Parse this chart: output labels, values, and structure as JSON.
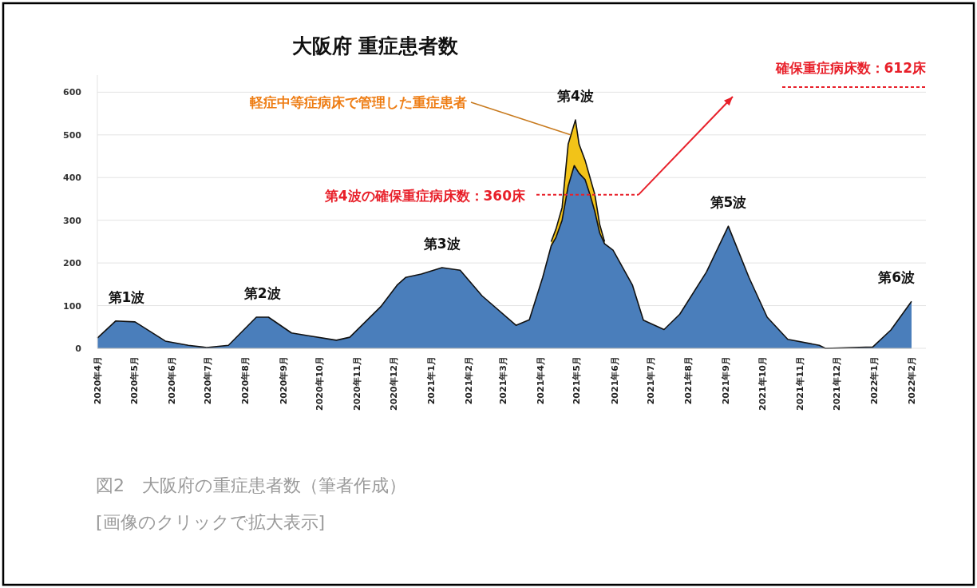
{
  "chart_data": {
    "type": "area",
    "title": "大阪府 重症患者数",
    "series": [
      {
        "color": "#f2c318",
        "x": [
          "2021-04-10",
          "2021-04-14",
          "2021-04-19",
          "2021-04-24",
          "2021-04-30",
          "2021-05-03",
          "2021-05-08",
          "2021-05-12",
          "2021-05-16",
          "2021-05-20",
          "2021-05-24"
        ],
        "values": [
          250,
          280,
          330,
          478,
          535,
          478,
          440,
          400,
          360,
          290,
          250
        ]
      },
      {
        "color": "#4a7ebb",
        "x": [
          "2020-04-01",
          "2020-04-16",
          "2020-05-02",
          "2020-05-27",
          "2020-06-15",
          "2020-06-30",
          "2020-07-18",
          "2020-08-10",
          "2020-08-20",
          "2020-09-08",
          "2020-09-21",
          "2020-10-15",
          "2020-10-26",
          "2020-11-21",
          "2020-12-04",
          "2020-12-11",
          "2020-12-24",
          "2021-01-10",
          "2021-01-25",
          "2021-02-12",
          "2021-03-12",
          "2021-03-23",
          "2021-04-03",
          "2021-04-10",
          "2021-04-14",
          "2021-04-19",
          "2021-04-24",
          "2021-04-29",
          "2021-05-03",
          "2021-05-08",
          "2021-05-12",
          "2021-05-16",
          "2021-05-20",
          "2021-05-24",
          "2021-05-31",
          "2021-06-16",
          "2021-06-25",
          "2021-07-12",
          "2021-07-25",
          "2021-08-16",
          "2021-09-03",
          "2021-09-20",
          "2021-10-05",
          "2021-10-22",
          "2021-11-17",
          "2021-11-22",
          "2021-12-31",
          "2022-01-15",
          "2022-02-01"
        ],
        "values": [
          24,
          64,
          62,
          17,
          7,
          2,
          7,
          73,
          73,
          36,
          30,
          19,
          26,
          99,
          148,
          166,
          174,
          189,
          183,
          123,
          54,
          67,
          166,
          240,
          260,
          300,
          380,
          428,
          410,
          395,
          360,
          320,
          270,
          245,
          230,
          148,
          66,
          44,
          80,
          179,
          286,
          166,
          73,
          21,
          7,
          0,
          3,
          43,
          110
        ]
      }
    ],
    "xlim": [
      "2020-04-01",
      "2022-02-01"
    ],
    "xticks": [
      {
        "value": "2020-04",
        "label": "2020年4月"
      },
      {
        "value": "2020-05",
        "label": "2020年5月"
      },
      {
        "value": "2020-06",
        "label": "2020年6月"
      },
      {
        "value": "2020-07",
        "label": "2020年7月"
      },
      {
        "value": "2020-08",
        "label": "2020年8月"
      },
      {
        "value": "2020-09",
        "label": "2020年9月"
      },
      {
        "value": "2020-10",
        "label": "2020年10月"
      },
      {
        "value": "2020-11",
        "label": "2020年11月"
      },
      {
        "value": "2020-12",
        "label": "2020年12月"
      },
      {
        "value": "2021-01",
        "label": "2021年1月"
      },
      {
        "value": "2021-02",
        "label": "2021年2月"
      },
      {
        "value": "2021-03",
        "label": "2021年3月"
      },
      {
        "value": "2021-04",
        "label": "2021年4月"
      },
      {
        "value": "2021-05",
        "label": "2021年5月"
      },
      {
        "value": "2021-06",
        "label": "2021年6月"
      },
      {
        "value": "2021-07",
        "label": "2021年7月"
      },
      {
        "value": "2021-08",
        "label": "2021年8月"
      },
      {
        "value": "2021-09",
        "label": "2021年9月"
      },
      {
        "value": "2021-10",
        "label": "2021年10月"
      },
      {
        "value": "2021-11",
        "label": "2021年11月"
      },
      {
        "value": "2021-12",
        "label": "2021年12月"
      },
      {
        "value": "2022-01",
        "label": "2022年1月"
      },
      {
        "value": "2022-02",
        "label": "2022年2月"
      }
    ],
    "ylim": [
      0,
      640
    ],
    "yticks": [
      0,
      100,
      200,
      300,
      400,
      500,
      600
    ],
    "grid": "y",
    "ref_lines": [
      {
        "axis": "y",
        "value": 360,
        "label": "第4波の確保重症病床数：360床",
        "color": "#e8202a",
        "line_style": "dashed"
      },
      {
        "axis": "y",
        "value": 612,
        "label": "確保重症病床数：612床",
        "color": "#e8202a",
        "line_style": "dashed"
      }
    ],
    "annotations": [
      {
        "text": "軽症中等症病床で管理した重症患者",
        "x": "2021-04-26",
        "y": 500
      },
      {
        "text": "第1波",
        "x": "2020-04-25",
        "y": 64
      },
      {
        "text": "第2波",
        "x": "2020-08-15",
        "y": 73
      },
      {
        "text": "第3波",
        "x": "2021-01-10",
        "y": 189
      },
      {
        "text": "第4波",
        "x": "2021-04-30",
        "y": 535
      },
      {
        "text": "第5波",
        "x": "2021-09-03",
        "y": 286
      },
      {
        "text": "第6波",
        "x": "2022-02-01",
        "y": 110
      },
      "図2　大阪府の重症患者数（筆者作成）",
      "[画像のクリックで拡大表示]"
    ]
  }
}
